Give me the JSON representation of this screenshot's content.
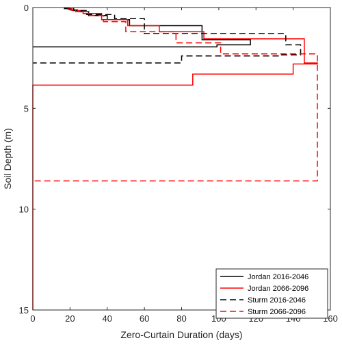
{
  "chart_data": {
    "type": "line",
    "xlabel": "Zero-Curtain Duration (days)",
    "ylabel": "Soil Depth (m)",
    "xlim": [
      0,
      160
    ],
    "ylim": [
      0,
      15
    ],
    "y_reversed": true,
    "x_ticks": [
      "0",
      "20",
      "40",
      "60",
      "80",
      "100",
      "120",
      "140",
      "160"
    ],
    "y_ticks": [
      "0",
      "5",
      "10",
      "15"
    ],
    "grid": false,
    "legend_position": "bottom-right",
    "series": [
      {
        "name": "Jordan 2016-2046",
        "color": "#000000",
        "dash": "solid",
        "x": [
          17,
          17,
          20,
          20,
          24,
          24,
          30,
          30,
          40,
          40,
          52,
          52,
          91,
          91,
          117,
          117,
          99,
          99,
          0
        ],
        "y": [
          0,
          0.05,
          0.05,
          0.12,
          0.12,
          0.2,
          0.2,
          0.4,
          0.4,
          0.6,
          0.6,
          0.9,
          0.9,
          1.6,
          1.6,
          1.85,
          1.85,
          1.95,
          1.95
        ]
      },
      {
        "name": "Jordan 2066-2096",
        "color": "#ff0000",
        "dash": "solid",
        "x": [
          18,
          18,
          21,
          21,
          27,
          27,
          37,
          37,
          51,
          51,
          68,
          68,
          92,
          92,
          146,
          146,
          153,
          153,
          140,
          140,
          86,
          86,
          0,
          0
        ],
        "y": [
          0,
          0.06,
          0.06,
          0.15,
          0.15,
          0.3,
          0.3,
          0.6,
          0.6,
          0.9,
          0.9,
          1.2,
          1.2,
          1.55,
          1.55,
          2.75,
          2.75,
          2.8,
          2.8,
          3.3,
          3.3,
          3.85,
          3.85,
          15
        ]
      },
      {
        "name": "Sturm 2016-2046",
        "color": "#000000",
        "dash": "dashed",
        "x": [
          17,
          17,
          22,
          22,
          29,
          29,
          44,
          44,
          60,
          60,
          136,
          136,
          144,
          144,
          132,
          132,
          80,
          80,
          0
        ],
        "y": [
          0,
          0.05,
          0.05,
          0.15,
          0.15,
          0.35,
          0.35,
          0.55,
          0.55,
          1.3,
          1.3,
          1.85,
          1.85,
          2.35,
          2.35,
          2.4,
          2.4,
          2.75,
          2.75
        ]
      },
      {
        "name": "Sturm 2066-2096",
        "color": "#ff0000",
        "dash": "dashed",
        "x": [
          19,
          19,
          23,
          23,
          30,
          30,
          38,
          38,
          50,
          50,
          77,
          77,
          101,
          101,
          153,
          153,
          0
        ],
        "y": [
          0,
          0.1,
          0.1,
          0.2,
          0.2,
          0.4,
          0.4,
          0.7,
          0.7,
          1.2,
          1.2,
          1.75,
          1.75,
          2.3,
          2.3,
          8.6,
          8.6
        ]
      }
    ]
  }
}
